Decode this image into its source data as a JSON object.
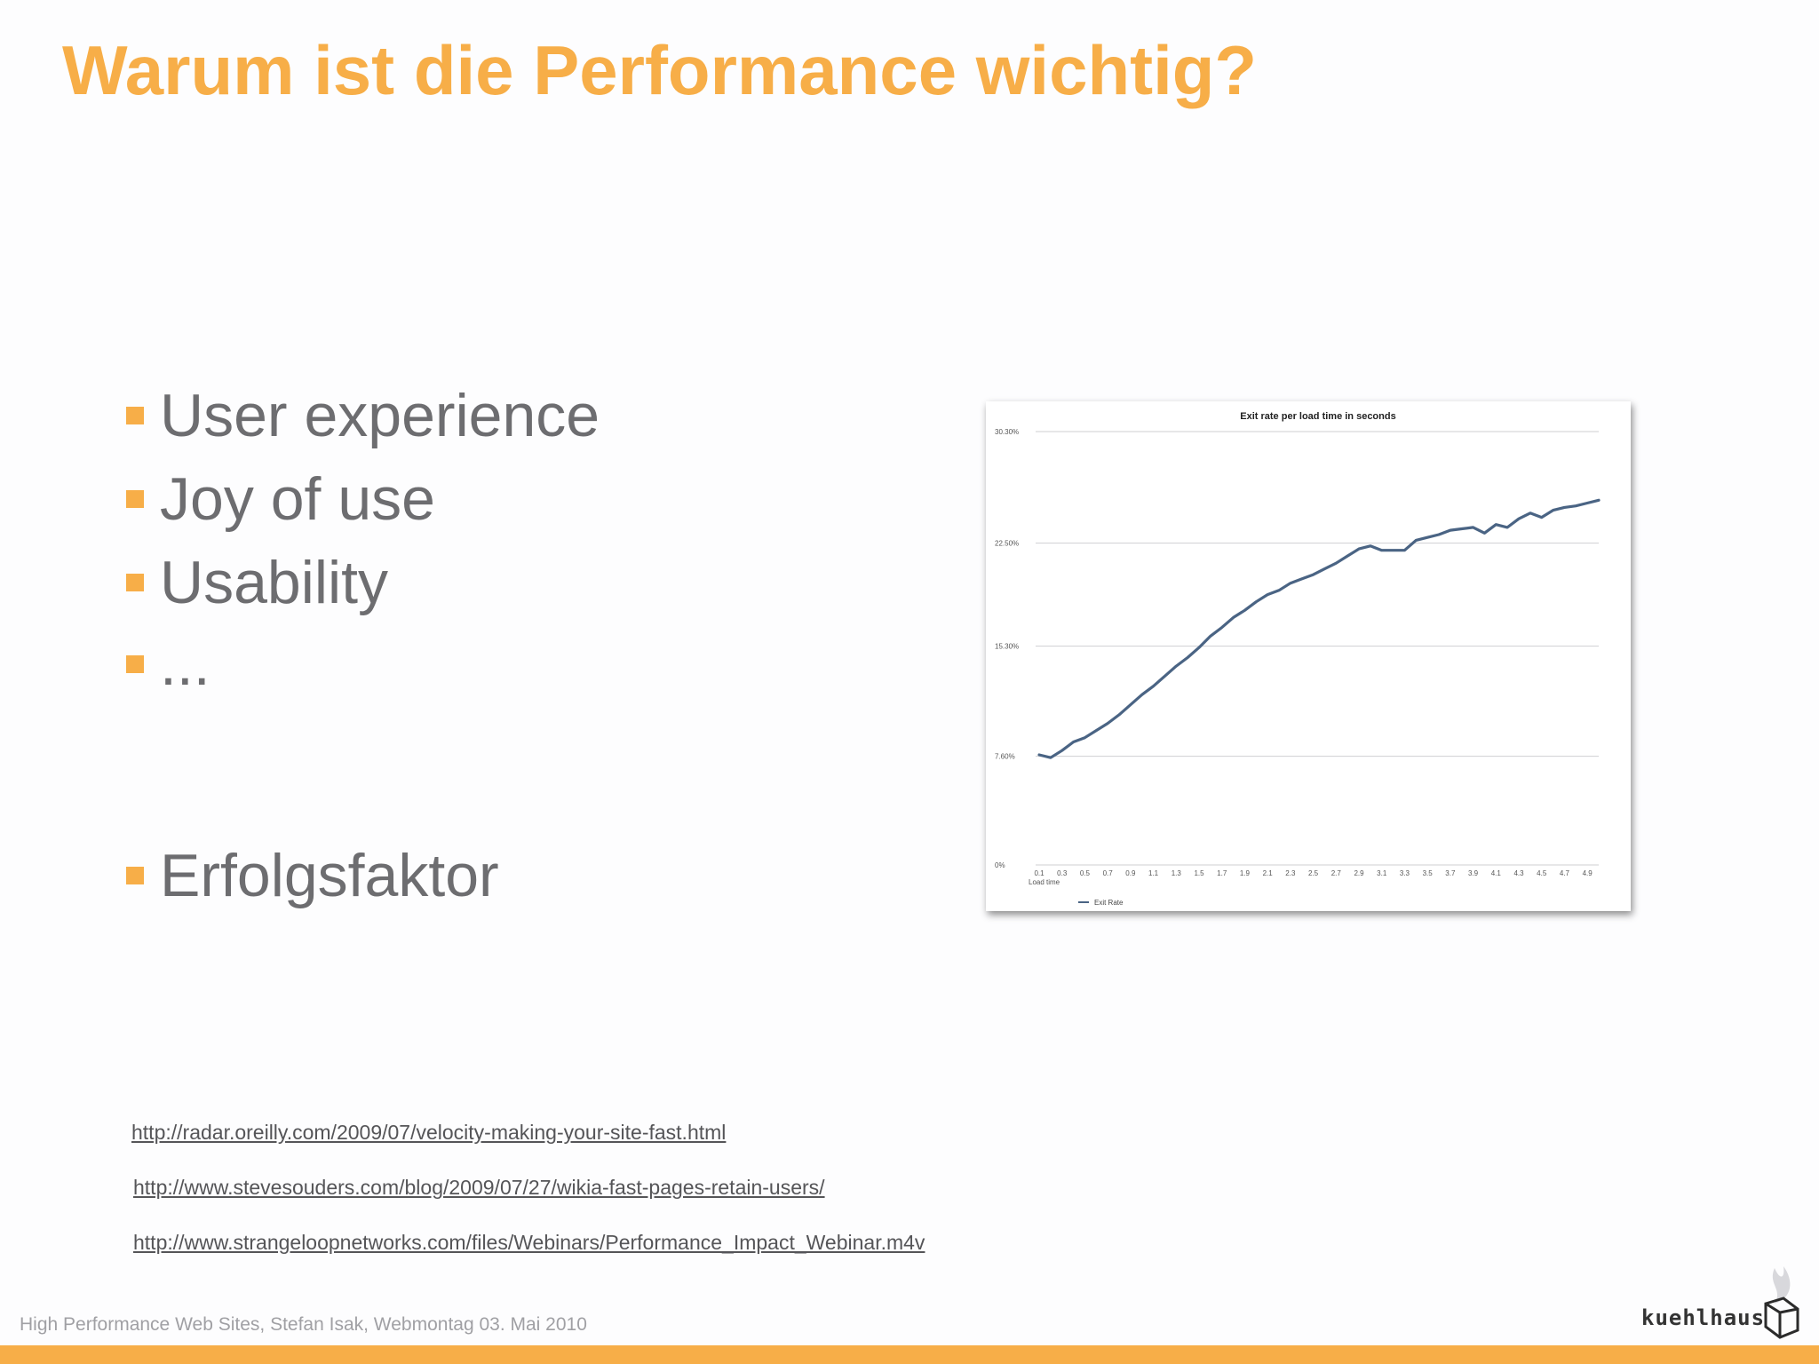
{
  "slide": {
    "title": "Warum ist die Performance wichtig?",
    "bullets": [
      "User experience",
      "Joy of use",
      "Usability",
      "...",
      "Erfolgsfaktor"
    ],
    "links": [
      "http://radar.oreilly.com/2009/07/velocity-making-your-site-fast.html",
      "http://www.stevesouders.com/blog/2009/07/27/wikia-fast-pages-retain-users/",
      "http://www.strangeloopnetworks.com/files/Webinars/Performance_Impact_Webinar.m4v"
    ],
    "footer": "High Performance Web Sites, Stefan Isak, Webmontag 03. Mai 2010",
    "logo_text": "kuehlhaus"
  },
  "colors": {
    "accent": "#f7ae48",
    "text": "#6d6d70",
    "line": "#4a6484"
  },
  "chart_data": {
    "type": "line",
    "title": "Exit rate per load time in seconds",
    "xlabel": "Load time",
    "ylabel": "",
    "ylim": [
      0,
      30.3
    ],
    "y_ticks": [
      "0%",
      "7.60%",
      "15.30%",
      "22.50%",
      "30.30%"
    ],
    "x_tick_labels": [
      "0.1",
      "0.3",
      "0.5",
      "0.7",
      "0.9",
      "1.1",
      "1.3",
      "1.5",
      "1.7",
      "1.9",
      "2.1",
      "2.3",
      "2.5",
      "2.7",
      "2.9",
      "3.1",
      "3.3",
      "3.5",
      "3.7",
      "3.9",
      "4.1",
      "4.3",
      "4.5",
      "4.7",
      "4.9"
    ],
    "grid": true,
    "legend": "bottom-left",
    "series": [
      {
        "name": "Exit Rate",
        "x": [
          0.1,
          0.2,
          0.3,
          0.4,
          0.5,
          0.6,
          0.7,
          0.8,
          0.9,
          1.0,
          1.1,
          1.2,
          1.3,
          1.4,
          1.5,
          1.6,
          1.7,
          1.8,
          1.9,
          2.0,
          2.1,
          2.2,
          2.3,
          2.4,
          2.5,
          2.6,
          2.7,
          2.8,
          2.9,
          3.0,
          3.1,
          3.2,
          3.3,
          3.4,
          3.5,
          3.6,
          3.7,
          3.8,
          3.9,
          4.0,
          4.1,
          4.2,
          4.3,
          4.4,
          4.5,
          4.6,
          4.7,
          4.8,
          4.9,
          5.0
        ],
        "values": [
          7.7,
          7.5,
          8.0,
          8.6,
          8.9,
          9.4,
          9.9,
          10.5,
          11.2,
          11.9,
          12.5,
          13.2,
          13.9,
          14.5,
          15.2,
          16.0,
          16.6,
          17.3,
          17.8,
          18.4,
          18.9,
          19.2,
          19.7,
          20.0,
          20.3,
          20.7,
          21.1,
          21.6,
          22.1,
          22.3,
          22.0,
          22.0,
          22.0,
          22.7,
          22.9,
          23.1,
          23.4,
          23.5,
          23.6,
          23.2,
          23.8,
          23.6,
          24.2,
          24.6,
          24.3,
          24.8,
          25.0,
          25.1,
          25.3,
          25.5
        ]
      }
    ]
  }
}
